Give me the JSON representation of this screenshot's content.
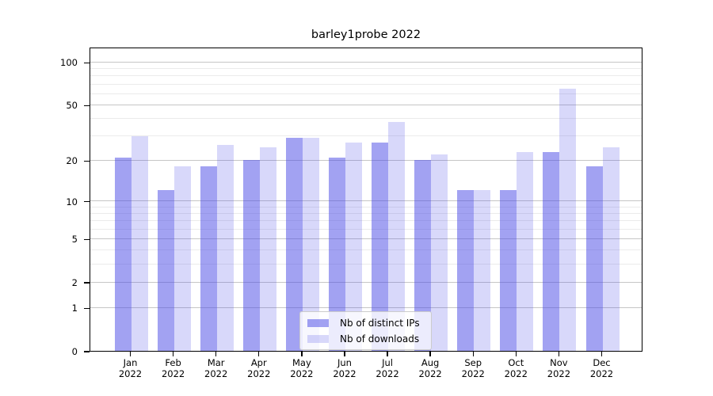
{
  "title": "barley1probe 2022",
  "chart_data": {
    "type": "bar",
    "title": "barley1probe 2022",
    "categories": [
      "Jan 2022",
      "Feb 2022",
      "Mar 2022",
      "Apr 2022",
      "May 2022",
      "Jun 2022",
      "Jul 2022",
      "Aug 2022",
      "Sep 2022",
      "Oct 2022",
      "Nov 2022",
      "Dec 2022"
    ],
    "series": [
      {
        "name": "Nb of distinct IPs",
        "color": "rgba(70,70,230,0.50)",
        "values": [
          21,
          12,
          18,
          20,
          29,
          21,
          27,
          20,
          12,
          12,
          23,
          18
        ]
      },
      {
        "name": "Nb of downloads",
        "color": "rgba(70,70,230,0.21)",
        "values": [
          30,
          18,
          26,
          25,
          29,
          27,
          38,
          22,
          12,
          23,
          65,
          25
        ]
      }
    ],
    "yscale": "log1p",
    "ylim": [
      0,
      128
    ],
    "yticks": [
      0,
      1,
      2,
      5,
      10,
      20,
      50,
      100
    ],
    "yticks_minor": [
      3,
      4,
      6,
      7,
      8,
      9,
      30,
      40,
      60,
      70,
      80,
      90
    ],
    "grid": true,
    "legend_position": "lower center"
  },
  "colors": {
    "major_grid": "#c6c6c6",
    "minor_grid": "#ebebeb",
    "axis": "#000000",
    "background": "#ffffff"
  }
}
